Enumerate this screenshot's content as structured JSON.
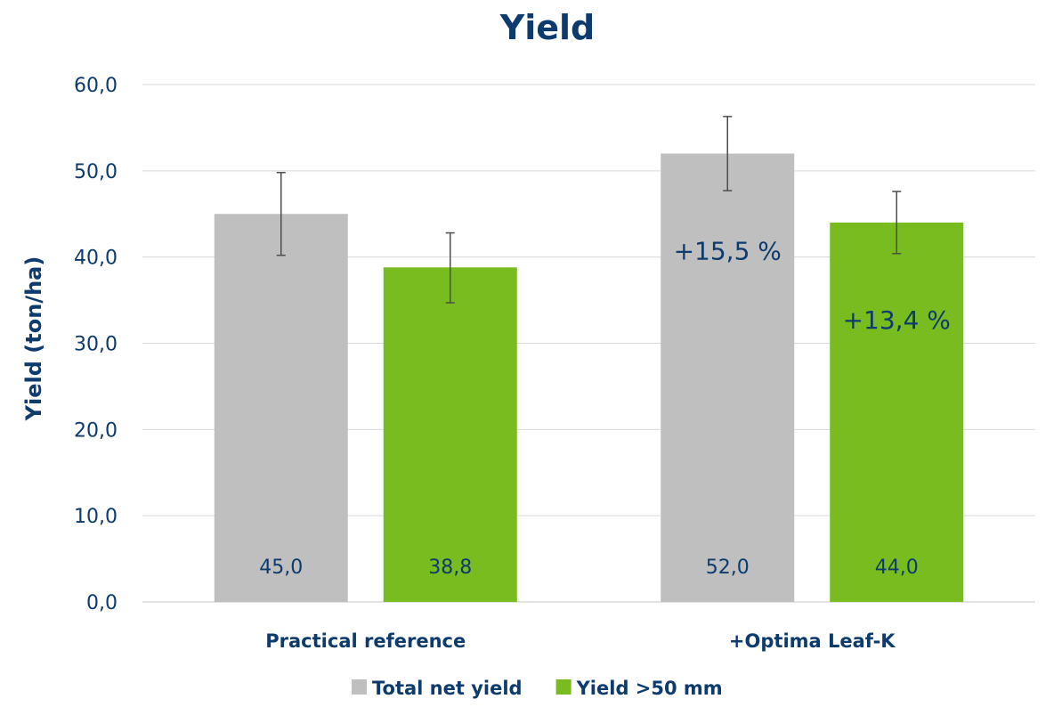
{
  "colors": {
    "text": "#0d3b6e",
    "grid": "#d9d9d9",
    "errorbar": "#4d4d4d",
    "total": "#bfbfbf",
    "large": "#78bc20"
  },
  "chart_data": {
    "type": "bar",
    "title": "Yield",
    "xlabel": "",
    "ylabel": "Yield (ton/ha)",
    "ylim": [
      0,
      60
    ],
    "yticks": [
      "0,0",
      "10,0",
      "20,0",
      "30,0",
      "40,0",
      "50,0",
      "60,0"
    ],
    "grid": true,
    "legend_position": "bottom",
    "categories": [
      "Practical reference",
      "+Optima Leaf-K"
    ],
    "series": [
      {
        "name": "Total net yield",
        "color": "#bfbfbf",
        "values": [
          45.0,
          52.0
        ],
        "value_labels": [
          "45,0",
          "52,0"
        ],
        "error_low": [
          40.2,
          47.7
        ],
        "error_high": [
          49.8,
          56.3
        ],
        "annotations": [
          "",
          "+15,5 %"
        ]
      },
      {
        "name": "Yield >50 mm",
        "color": "#78bc20",
        "values": [
          38.8,
          44.0
        ],
        "value_labels": [
          "38,8",
          "44,0"
        ],
        "error_low": [
          34.7,
          40.4
        ],
        "error_high": [
          42.8,
          47.6
        ],
        "annotations": [
          "",
          "+13,4 %"
        ]
      }
    ]
  }
}
